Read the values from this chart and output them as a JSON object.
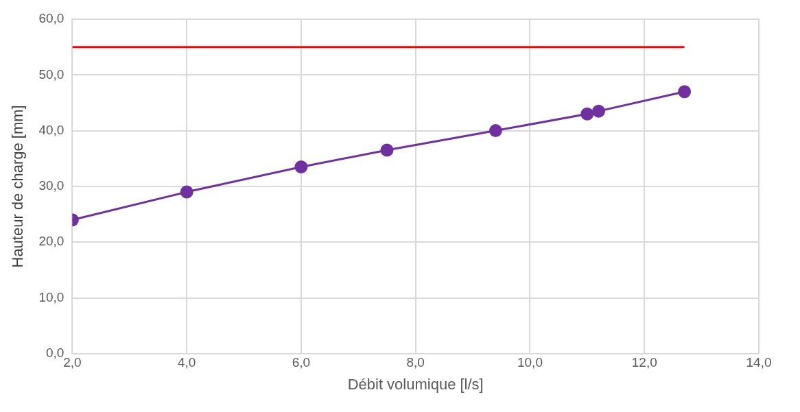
{
  "chart_data": {
    "type": "line",
    "xlabel": "Débit volumique [l/s]",
    "ylabel": "Hauteur de charge [mm]",
    "xlim": [
      2,
      14
    ],
    "xticks": [
      {
        "value": 2,
        "label": "2,0"
      },
      {
        "value": 4,
        "label": "4,0"
      },
      {
        "value": 6,
        "label": "6,0"
      },
      {
        "value": 8,
        "label": "8,0"
      },
      {
        "value": 10,
        "label": "10,0"
      },
      {
        "value": 12,
        "label": "12,0"
      },
      {
        "value": 14,
        "label": "14,0"
      }
    ],
    "ylim": [
      0,
      60
    ],
    "yticks": [
      {
        "value": 0,
        "label": "0,0"
      },
      {
        "value": 10,
        "label": "10,0"
      },
      {
        "value": 20,
        "label": "20,0"
      },
      {
        "value": 30,
        "label": "30,0"
      },
      {
        "value": 40,
        "label": "40,0"
      },
      {
        "value": 50,
        "label": "50,0"
      },
      {
        "value": 60,
        "label": "60,0"
      }
    ],
    "grid": true,
    "legend": false,
    "series": [
      {
        "color": "#ff0000",
        "marker": "none",
        "x": [
          2,
          12.7
        ],
        "values": [
          55,
          55
        ]
      },
      {
        "color": "#7030a0",
        "marker": "circle",
        "x": [
          2,
          4,
          6,
          7.5,
          9.4,
          11,
          11.2,
          12.7
        ],
        "values": [
          24,
          29,
          33.5,
          36.5,
          40,
          43,
          43.5,
          47
        ]
      }
    ]
  }
}
